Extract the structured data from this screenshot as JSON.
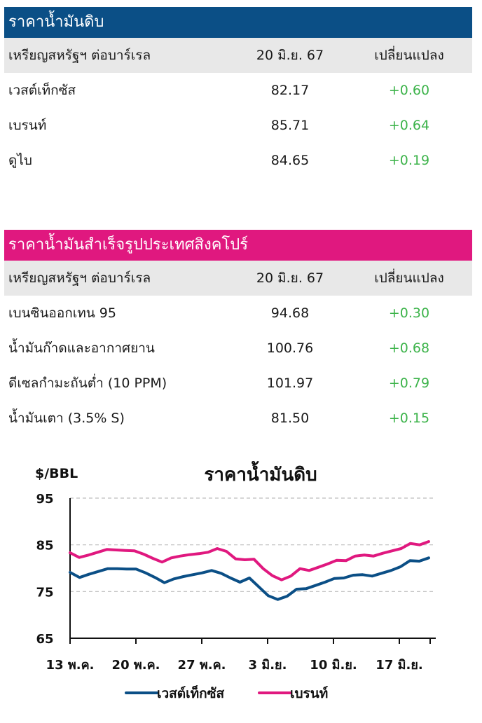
{
  "crude_table": {
    "title": "ราคาน้ำมันดิบ",
    "header": {
      "name": "เหรียญสหรัฐฯ ต่อบาร์เรล",
      "date": "20 มิ.ย. 67",
      "change": "เปลี่ยนแปลง"
    },
    "rows": [
      {
        "name": "เวสต์เท็กซัส",
        "price": "82.17",
        "change": "+0.60"
      },
      {
        "name": "เบรนท์",
        "price": "85.71",
        "change": "+0.64"
      },
      {
        "name": "ดูไบ",
        "price": "84.65",
        "change": "+0.19"
      }
    ]
  },
  "singapore_table": {
    "title": "ราคาน้ำมันสำเร็จรูปประเทศสิงคโปร์",
    "header": {
      "name": "เหรียญสหรัฐฯ ต่อบาร์เรล",
      "date": "20 มิ.ย. 67",
      "change": "เปลี่ยนแปลง"
    },
    "rows": [
      {
        "name": "เบนซินออกเทน 95",
        "price": "94.68",
        "change": "+0.30"
      },
      {
        "name": "น้ำมันก๊าดและอากาศยาน",
        "price": "100.76",
        "change": "+0.68"
      },
      {
        "name": "ดีเซลกำมะถันต่ำ (10 PPM)",
        "price": "101.97",
        "change": "+0.79"
      },
      {
        "name": "น้ำมันเตา (3.5% S)",
        "price": "81.50",
        "change": "+0.15"
      }
    ]
  },
  "colors": {
    "wti": "#0b4f86",
    "brent": "#e0187f",
    "positive": "#3cb34a"
  },
  "chart_data": {
    "type": "line",
    "title": "ราคาน้ำมันดิบ",
    "ylabel": "$/BBL",
    "ylim": [
      65,
      95
    ],
    "yticks": [
      65,
      75,
      85,
      95
    ],
    "xticks": [
      "13 พ.ค.",
      "20 พ.ค.",
      "27 พ.ค.",
      "3 มิ.ย.",
      "10 มิ.ย.",
      "17 มิ.ย."
    ],
    "legend_position": "bottom",
    "grid": "horizontal-dashed",
    "series": [
      {
        "name": "เวสต์เท็กซัส",
        "color": "#0b4f86",
        "values": [
          79.1,
          78.0,
          78.7,
          79.3,
          79.9,
          79.9,
          79.8,
          79.8,
          79.0,
          78.0,
          76.9,
          77.7,
          78.2,
          78.6,
          79.0,
          79.5,
          78.9,
          77.9,
          77.0,
          77.9,
          76.0,
          74.1,
          73.3,
          74.0,
          75.5,
          75.6,
          76.3,
          77.0,
          77.8,
          77.9,
          78.5,
          78.6,
          78.3,
          78.9,
          79.5,
          80.3,
          81.6,
          81.5,
          82.2
        ]
      },
      {
        "name": "เบรนท์",
        "color": "#e0187f",
        "values": [
          83.3,
          82.3,
          82.8,
          83.4,
          84.0,
          83.9,
          83.8,
          83.7,
          83.0,
          82.1,
          81.3,
          82.2,
          82.6,
          82.9,
          83.1,
          83.4,
          84.2,
          83.6,
          82.0,
          81.8,
          81.9,
          79.9,
          78.4,
          77.5,
          78.3,
          79.9,
          79.5,
          80.2,
          80.9,
          81.7,
          81.6,
          82.6,
          82.8,
          82.6,
          83.2,
          83.7,
          84.2,
          85.3,
          85.0,
          85.7
        ]
      }
    ]
  }
}
